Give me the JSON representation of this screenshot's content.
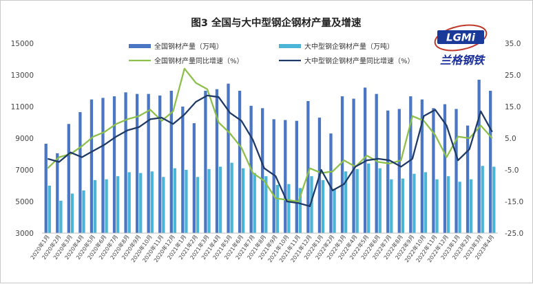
{
  "chart_data": {
    "type": "bar+line",
    "title": "图3 全国与大中型钢企钢材产量及增速",
    "categories": [
      "2020年1月",
      "2020年2月",
      "2020年3月",
      "2020年4月",
      "2020年5月",
      "2020年6月",
      "2020年7月",
      "2020年8月",
      "2020年9月",
      "2020年10月",
      "2020年11月",
      "2020年12月",
      "2021年1月",
      "2021年2月",
      "2021年3月",
      "2021年4月",
      "2021年5月",
      "2021年6月",
      "2021年7月",
      "2021年8月",
      "2021年9月",
      "2021年10月",
      "2021年11月",
      "2021年12月",
      "2022年1月",
      "2022年2月",
      "2022年3月",
      "2022年4月",
      "2022年5月",
      "2022年6月",
      "2022年7月",
      "2022年8月",
      "2022年9月",
      "2022年10月",
      "2022年11月",
      "2022年12月",
      "2023年1月",
      "2023年2月",
      "2023年3月",
      "2023年4月"
    ],
    "left_axis": {
      "ylim": [
        3000,
        15000
      ],
      "ticks": [
        "3000",
        "5000",
        "7000",
        "9000",
        "11000",
        "13000",
        "15000"
      ],
      "tick_values": [
        3000,
        5000,
        7000,
        9000,
        11000,
        13000,
        15000
      ]
    },
    "right_axis": {
      "ylim": [
        -25,
        35
      ],
      "ticks": [
        "-25.0",
        "-15.0",
        "-5.0",
        "5.0",
        "15.0",
        "25.0",
        "35.0"
      ],
      "tick_values": [
        -25,
        -15,
        -5,
        5,
        15,
        25,
        35
      ]
    },
    "bar_series": [
      {
        "name": "全国钢材产量（万吨）",
        "color": "#4a76c4",
        "values": [
          8650,
          8050,
          9900,
          10650,
          11450,
          11550,
          11650,
          11900,
          11800,
          11800,
          11700,
          12000,
          11000,
          9950,
          12000,
          12100,
          12450,
          12000,
          11050,
          10900,
          10200,
          10150,
          10100,
          11350,
          10300,
          9300,
          11650,
          11500,
          12200,
          11800,
          10750,
          10850,
          11650,
          11450,
          10900,
          11150,
          10850,
          9800,
          12700,
          12000
        ]
      },
      {
        "name": "大中型钢企钢材产量（万吨）",
        "color": "#4ab5d6",
        "values": [
          6000,
          5050,
          5500,
          5700,
          6350,
          6400,
          6600,
          6850,
          6800,
          6900,
          6550,
          7100,
          7000,
          6550,
          7050,
          7200,
          7450,
          7100,
          6800,
          6600,
          6050,
          6100,
          5850,
          6600,
          6350,
          5800,
          6900,
          7050,
          7400,
          7100,
          6400,
          6450,
          6750,
          6850,
          6400,
          6600,
          6250,
          6400,
          7250,
          7200
        ]
      }
    ],
    "line_series": [
      {
        "name": "全国钢材产量同比增速（%）",
        "color": "#8dc04a",
        "values": [
          -4.5,
          -1,
          0,
          2.5,
          5.5,
          7,
          9.5,
          11,
          12,
          14,
          10.5,
          13.5,
          27,
          22.5,
          20.5,
          10,
          6.5,
          2,
          -6,
          -8.5,
          -14,
          -14.5,
          -15,
          -4.5,
          -6,
          -5.5,
          -2,
          -4,
          -0.5,
          -2.5,
          -3,
          -2,
          12,
          10.5,
          6,
          -1,
          5.5,
          5,
          9,
          5
        ]
      },
      {
        "name": "大中型钢企钢材产量同比增速（%）",
        "color": "#1f3a66",
        "values": [
          -1.5,
          -2.5,
          0.5,
          -1,
          1,
          3,
          5.5,
          7.5,
          8.5,
          11,
          11.5,
          9.5,
          12.5,
          16.5,
          18.5,
          18,
          13,
          10.5,
          4.5,
          -4.5,
          -7,
          -15,
          -15.5,
          -16.5,
          -5,
          -11.5,
          -9.5,
          -4,
          -2,
          -1.5,
          -2,
          -4,
          -1.5,
          12,
          14,
          9,
          -2,
          1.5,
          13.5,
          7
        ]
      }
    ],
    "legend": [
      "全国钢材产量（万吨）",
      "大中型钢企钢材产量（万吨）",
      "全国钢材产量同比增速（%）",
      "大中型钢企钢材产量同比增速（%）"
    ],
    "legend_placement": "top",
    "grid": false
  },
  "logo": {
    "text": "LGMi",
    "subtitle": "兰格钢铁"
  }
}
